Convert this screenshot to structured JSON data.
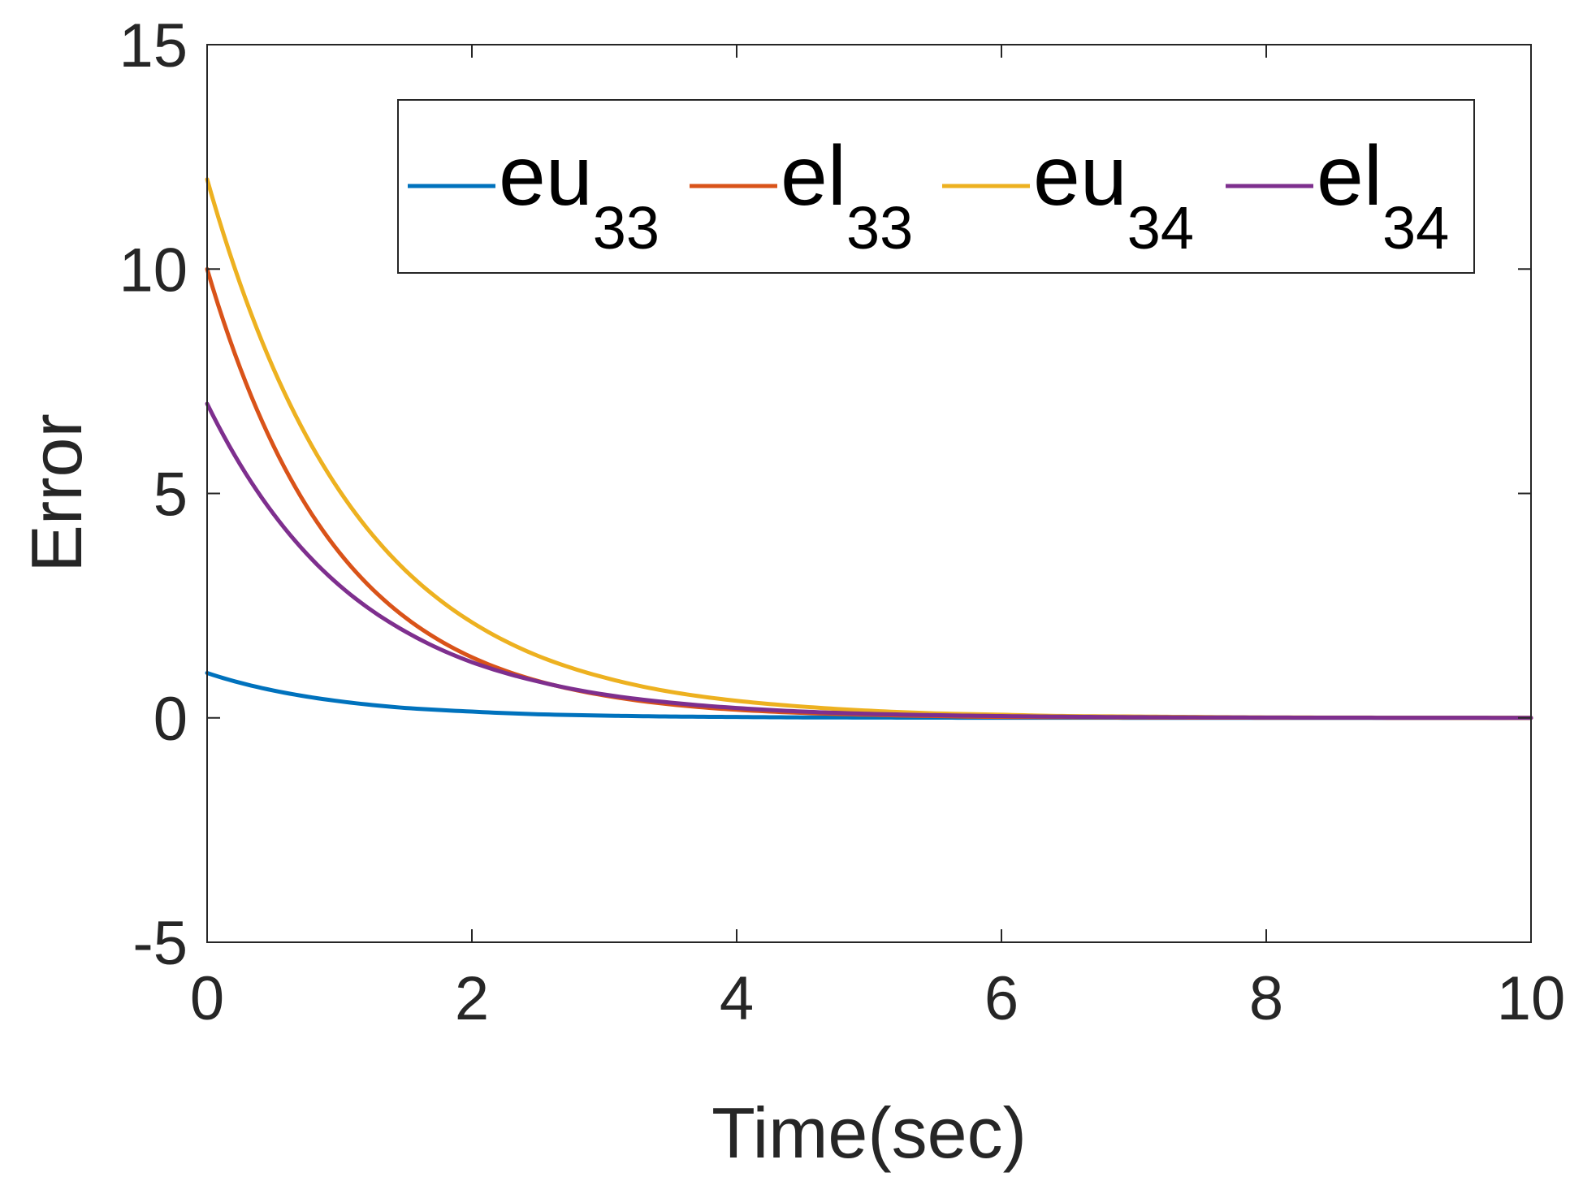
{
  "chart_data": {
    "type": "line",
    "title": "",
    "xlabel": "Time(sec)",
    "ylabel": "Error",
    "xlim": [
      0,
      10
    ],
    "ylim": [
      -5,
      15
    ],
    "xticks": [
      0,
      2,
      4,
      6,
      8,
      10
    ],
    "yticks": [
      -5,
      0,
      5,
      10,
      15
    ],
    "xtick_labels": [
      "0",
      "2",
      "4",
      "6",
      "8",
      "10"
    ],
    "ytick_labels": [
      "-5",
      "0",
      "5",
      "10",
      "15"
    ],
    "grid": false,
    "legend_position": "top-right",
    "x": [
      0,
      0.5,
      1,
      1.5,
      2,
      2.5,
      3,
      3.5,
      4,
      4.5,
      5,
      5.5,
      6,
      6.5,
      7,
      7.5,
      8,
      8.5,
      9,
      9.5,
      10
    ],
    "series": [
      {
        "name_main": "eu",
        "name_sub": "33",
        "color": "#0072BD",
        "values": [
          1.0,
          0.61,
          0.37,
          0.22,
          0.14,
          0.08,
          0.05,
          0.03,
          0.02,
          0.01,
          0.007,
          0.004,
          0.002,
          0.002,
          0.001,
          0.0005,
          0.0003,
          0.0002,
          0.0001,
          0.0001,
          0.0
        ]
      },
      {
        "name_main": "el",
        "name_sub": "33",
        "color": "#D95319",
        "values": [
          10.0,
          6.07,
          3.68,
          2.23,
          1.35,
          0.82,
          0.5,
          0.3,
          0.18,
          0.11,
          0.07,
          0.04,
          0.02,
          0.015,
          0.009,
          0.005,
          0.003,
          0.002,
          0.001,
          0.0007,
          0.0
        ]
      },
      {
        "name_main": "eu",
        "name_sub": "34",
        "color": "#EDB120",
        "values": [
          12.0,
          7.79,
          5.06,
          3.28,
          2.13,
          1.38,
          0.9,
          0.58,
          0.38,
          0.25,
          0.16,
          0.1,
          0.07,
          0.04,
          0.03,
          0.02,
          0.01,
          0.007,
          0.005,
          0.003,
          0.0
        ]
      },
      {
        "name_main": "el",
        "name_sub": "34",
        "color": "#7E2F8E",
        "values": [
          7.0,
          4.55,
          2.95,
          1.92,
          1.24,
          0.81,
          0.52,
          0.34,
          0.22,
          0.14,
          0.09,
          0.06,
          0.04,
          0.025,
          0.016,
          0.01,
          0.007,
          0.004,
          0.003,
          0.002,
          0.0
        ]
      }
    ]
  }
}
